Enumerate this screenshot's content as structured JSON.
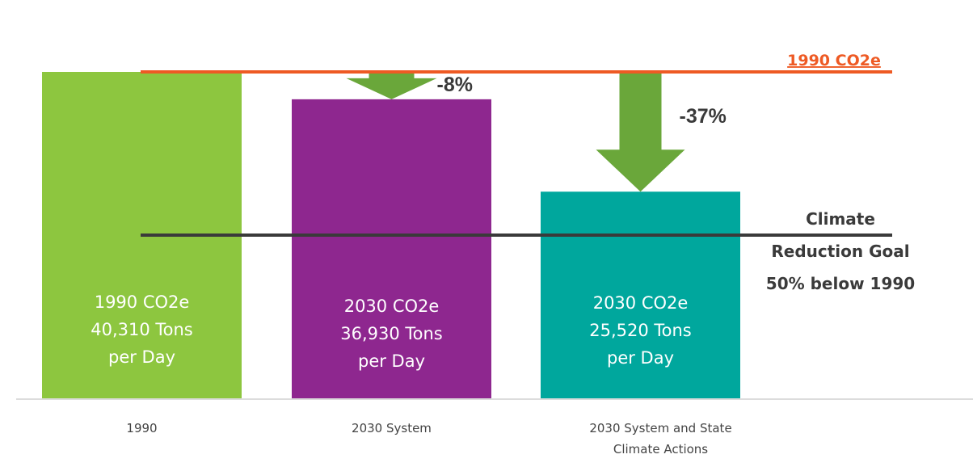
{
  "chart_data": {
    "type": "bar",
    "categories": [
      [
        "1990"
      ],
      [
        "2030 System"
      ],
      [
        "2030 System and State",
        "Climate Actions"
      ]
    ],
    "values": [
      40310,
      36930,
      25520
    ],
    "unit": "Tons per Day",
    "ylim": [
      0,
      40310
    ],
    "bar_colors": [
      "#8dc63f",
      "#8e278f",
      "#00a79d"
    ],
    "bar_labels": [
      [
        "1990 CO2e",
        "40,310 Tons",
        "per Day"
      ],
      [
        "2030 CO2e",
        "36,930 Tons",
        "per Day"
      ],
      [
        "2030 CO2e",
        "25,520 Tons",
        "per Day"
      ]
    ],
    "reference_lines": [
      {
        "value": 40310,
        "label": [
          "1990 CO2e"
        ],
        "color": "#ee5a24"
      },
      {
        "value": 20155,
        "label": [
          "Climate",
          "Reduction Goal",
          "50% below 1990"
        ],
        "color": "#3a3a3a"
      }
    ],
    "reductions": [
      {
        "category_index": 1,
        "label": "-8%"
      },
      {
        "category_index": 2,
        "label": "-37%"
      }
    ],
    "arrow_color": "#6aa73a",
    "grid": false,
    "legend": "none"
  }
}
